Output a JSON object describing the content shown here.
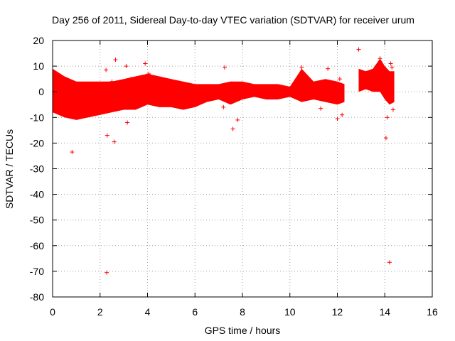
{
  "chart_data": {
    "type": "scatter",
    "title": "Day 256 of 2011, Sidereal Day-to-day VTEC variation (SDTVAR) for receiver urum",
    "xlabel": "GPS time / hours",
    "ylabel": "SDTVAR / TECUs",
    "xlim": [
      0,
      16
    ],
    "ylim": [
      -80,
      20
    ],
    "xticks": [
      0,
      2,
      4,
      6,
      8,
      10,
      12,
      14,
      16
    ],
    "yticks": [
      -80,
      -70,
      -60,
      -50,
      -40,
      -30,
      -20,
      -10,
      0,
      10,
      20
    ],
    "xtick_labels": [
      "0",
      "2",
      "4",
      "6",
      "8",
      "10",
      "12",
      "14",
      "16"
    ],
    "ytick_labels": [
      "-80",
      "-70",
      "-60",
      "-50",
      "-40",
      "-30",
      "-20",
      "-10",
      "0",
      "10",
      "20"
    ],
    "grid": true,
    "legend": "none",
    "marker": "+",
    "color": "#ff0000",
    "series": [
      {
        "name": "SDTVAR",
        "dense_bands": [
          {
            "x": [
              0.0,
              0.5,
              1.0,
              1.5,
              2.0,
              2.5,
              3.0,
              3.5,
              4.0,
              4.5,
              5.0,
              5.5,
              6.0,
              6.5,
              7.0,
              7.5,
              8.0,
              8.5,
              9.0,
              9.5,
              10.0,
              10.5,
              11.0,
              11.5,
              12.0,
              12.3
            ],
            "upper": [
              9,
              6,
              4,
              4,
              4,
              4,
              5,
              6,
              7,
              6,
              5,
              4,
              3,
              3,
              3,
              4,
              4,
              3,
              3,
              3,
              2,
              9,
              4,
              5,
              4,
              3
            ],
            "lower": [
              -8,
              -10,
              -11,
              -10,
              -9,
              -8,
              -7,
              -7,
              -5,
              -6,
              -6,
              -7,
              -6,
              -4,
              -3,
              -5,
              -3,
              -2,
              -3,
              -3,
              -2,
              -4,
              -3,
              -4,
              -5,
              -4
            ]
          },
          {
            "x": [
              12.9,
              13.2,
              13.5,
              13.8,
              14.0,
              14.2,
              14.4
            ],
            "upper": [
              9,
              8,
              9,
              13,
              10,
              8,
              8
            ],
            "lower": [
              0,
              1,
              0,
              0,
              -3,
              -5,
              -4
            ]
          }
        ],
        "x": [
          0.82,
          2.28,
          2.25,
          2.3,
          2.5,
          2.6,
          2.65,
          3.1,
          3.15,
          3.3,
          3.9,
          4.05,
          7.2,
          7.25,
          7.6,
          7.8,
          10.5,
          10.6,
          11.3,
          11.6,
          12.0,
          12.1,
          12.2,
          12.9,
          13.8,
          14.05,
          14.1,
          14.2,
          14.25,
          14.3,
          14.35
        ],
        "y": [
          -23.5,
          -70.5,
          8.5,
          -17,
          4,
          -19.5,
          12.5,
          10,
          -12,
          5,
          11,
          7,
          -6,
          9.5,
          -14.5,
          -11,
          9.5,
          7,
          -6.5,
          9,
          -10.5,
          5,
          -9,
          16.5,
          13,
          -18,
          -10,
          -66.5,
          11,
          9.5,
          -7
        ]
      }
    ]
  }
}
